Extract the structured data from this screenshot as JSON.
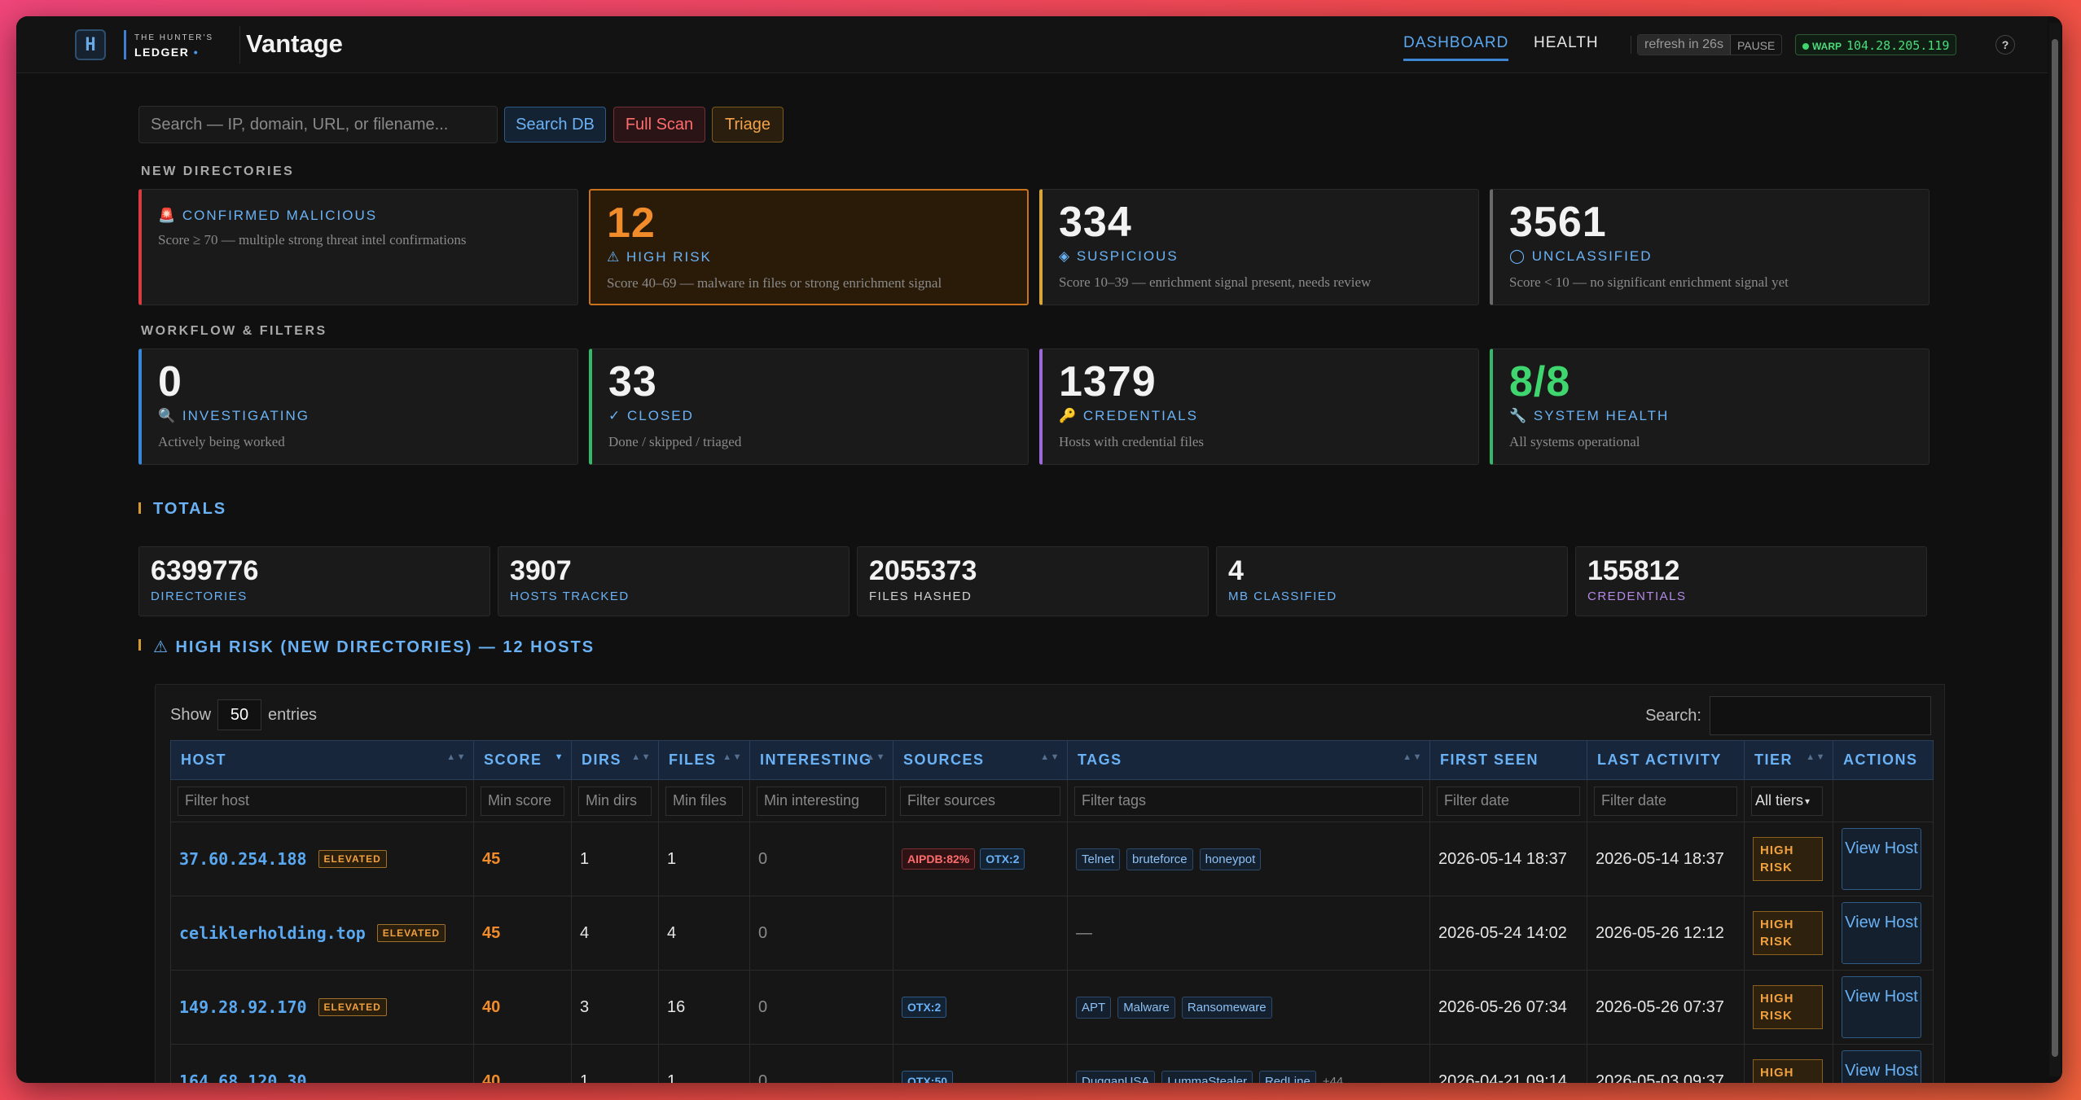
{
  "nav": {
    "logo_mark": "H",
    "logo_small": "THE HUNTER'S",
    "logo_big": "LEDGER",
    "brand": "Vantage",
    "tabs": [
      "DASHBOARD",
      "HEALTH"
    ],
    "refresh_text": "refresh in 26s",
    "pause_label": "PAUSE",
    "warp_label": "WARP",
    "warp_ip": "104.28.205.119",
    "help": "?"
  },
  "search": {
    "placeholder": "Search — IP, domain, URL, or filename...",
    "buttons": {
      "db": "Search DB",
      "scan": "Full Scan",
      "triage": "Triage"
    }
  },
  "new_directories": {
    "label": "NEW DIRECTORIES",
    "cards": [
      {
        "icon": "🚨",
        "title": "CONFIRMED MALICIOUS",
        "desc": "Score ≥ 70 — multiple strong threat intel confirmations"
      },
      {
        "value": "12",
        "icon": "⚠",
        "title": "HIGH RISK",
        "desc": "Score 40–69 — malware in files or strong enrichment signal"
      },
      {
        "value": "334",
        "icon": "◈",
        "title": "SUSPICIOUS",
        "desc": "Score 10–39 — enrichment signal present, needs review"
      },
      {
        "value": "3561",
        "icon": "◯",
        "title": "UNCLASSIFIED",
        "desc": "Score < 10 — no significant enrichment signal yet"
      }
    ]
  },
  "workflow": {
    "label": "WORKFLOW & FILTERS",
    "cards": [
      {
        "value": "0",
        "icon": "🔍",
        "title": "INVESTIGATING",
        "desc": "Actively being worked"
      },
      {
        "value": "33",
        "icon": "✓",
        "title": "CLOSED",
        "desc": "Done / skipped / triaged"
      },
      {
        "value": "1379",
        "icon": "🔑",
        "title": "CREDENTIALS",
        "desc": "Hosts with credential files"
      },
      {
        "value": "8/8",
        "icon": "🔧",
        "title": "SYSTEM HEALTH",
        "desc": "All systems operational"
      }
    ]
  },
  "totals": {
    "heading": "TOTALS",
    "items": [
      {
        "value": "6399776",
        "label": "DIRECTORIES"
      },
      {
        "value": "3907",
        "label": "HOSTS TRACKED"
      },
      {
        "value": "2055373",
        "label": "FILES HASHED"
      },
      {
        "value": "4",
        "label": "MB CLASSIFIED"
      },
      {
        "value": "155812",
        "label": "CREDENTIALS"
      }
    ]
  },
  "high_risk": {
    "heading": "⚠ HIGH RISK (NEW DIRECTORIES) — 12 HOSTS",
    "show_label": "Show",
    "show_value": "50",
    "entries_label": "entries",
    "search_label": "Search:",
    "columns": [
      "HOST",
      "SCORE",
      "DIRS",
      "FILES",
      "INTERESTING",
      "SOURCES",
      "TAGS",
      "FIRST SEEN",
      "LAST ACTIVITY",
      "TIER",
      "ACTIONS"
    ],
    "filters": [
      "Filter host",
      "Min score",
      "Min dirs",
      "Min files",
      "Min interesting",
      "Filter sources",
      "Filter tags",
      "Filter date",
      "Filter date",
      "All tiers"
    ],
    "rows": [
      {
        "host": "37.60.254.188",
        "badge": "ELEVATED",
        "score": "45",
        "dirs": "1",
        "files": "1",
        "interesting": "0",
        "sources": [
          "AIPDB:82%",
          "OTX:2"
        ],
        "tags": [
          "Telnet",
          "bruteforce",
          "honeypot"
        ],
        "first_seen": "2026-05-14 18:37",
        "last_activity": "2026-05-14 18:37",
        "tier": "HIGH RISK",
        "action": "View Host"
      },
      {
        "host": "celiklerholding.top",
        "badge": "ELEVATED",
        "score": "45",
        "dirs": "4",
        "files": "4",
        "interesting": "0",
        "sources": [],
        "tags": [],
        "empty_tags": "—",
        "first_seen": "2026-05-24 14:02",
        "last_activity": "2026-05-26 12:12",
        "tier": "HIGH RISK",
        "action": "View Host"
      },
      {
        "host": "149.28.92.170",
        "badge": "ELEVATED",
        "score": "40",
        "dirs": "3",
        "files": "16",
        "interesting": "0",
        "sources": [
          "OTX:2"
        ],
        "tags": [
          "APT",
          "Malware",
          "Ransomeware"
        ],
        "first_seen": "2026-05-26 07:34",
        "last_activity": "2026-05-26 07:37",
        "tier": "HIGH RISK",
        "action": "View Host"
      },
      {
        "host": "164.68.120.30",
        "badge": "",
        "score": "40",
        "dirs": "1",
        "files": "1",
        "interesting": "0",
        "sources": [
          "OTX:50"
        ],
        "tags": [
          "DugganUSA",
          "LummaStealer",
          "RedLine"
        ],
        "more_tags": "+44",
        "first_seen": "2026-04-21 09:14",
        "last_activity": "2026-05-03 09:37",
        "tier": "HIGH RISK",
        "action": "View Host"
      }
    ]
  }
}
